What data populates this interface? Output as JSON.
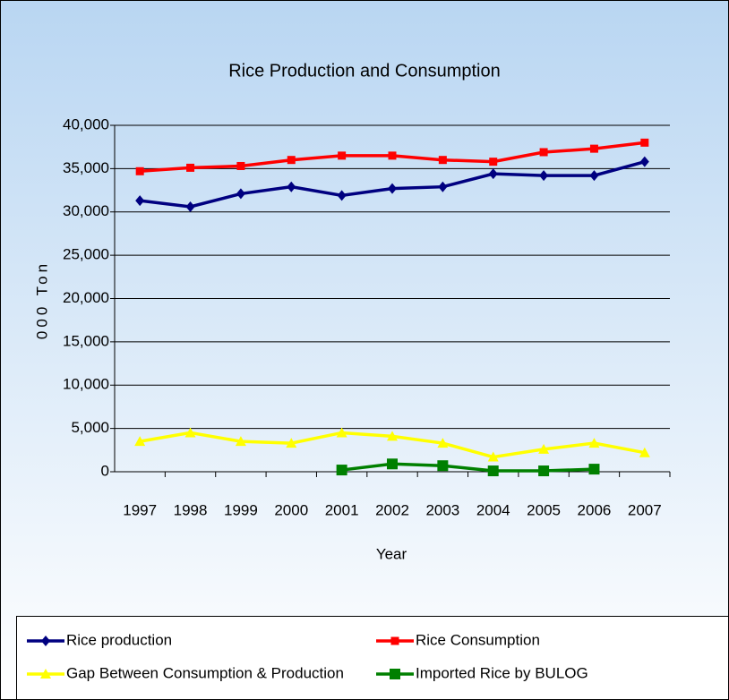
{
  "chart_data": {
    "type": "line",
    "title": "Rice Production and Consumption",
    "x_label": "Year",
    "y_label": "000 Ton",
    "categories": [
      "1997",
      "1998",
      "1999",
      "2000",
      "2001",
      "2002",
      "2003",
      "2004",
      "2005",
      "2006",
      "2007"
    ],
    "series": [
      {
        "name": "Rice production",
        "color": "#000080",
        "marker": "diamond",
        "values": [
          31300,
          30600,
          32100,
          32900,
          31900,
          32700,
          32900,
          34400,
          34200,
          34200,
          35800
        ]
      },
      {
        "name": "Rice Consumption",
        "color": "#ff0000",
        "marker": "square",
        "values": [
          34700,
          35100,
          35300,
          36000,
          36500,
          36500,
          36000,
          35800,
          36900,
          37300,
          38000
        ]
      },
      {
        "name": "Gap Between Consumption & Production",
        "color": "#ffff00",
        "marker": "triangle",
        "values": [
          3500,
          4500,
          3500,
          3300,
          4500,
          4100,
          3300,
          1700,
          2600,
          3300,
          2200
        ]
      },
      {
        "name": "Imported Rice by BULOG",
        "color": "#008000",
        "marker": "bigsquare",
        "values": [
          null,
          null,
          null,
          null,
          200,
          900,
          700,
          100,
          100,
          300,
          null
        ]
      }
    ],
    "ylim": [
      0,
      40000
    ],
    "yticks": [
      0,
      {
        "value": 5000,
        "label": "5,000"
      },
      {
        "value": 10000,
        "label": "10,000"
      },
      {
        "value": 15000,
        "label": "15,000"
      },
      {
        "value": 20000,
        "label": "20,000"
      },
      {
        "value": 25000,
        "label": "25,000"
      },
      {
        "value": 30000,
        "label": "30,000"
      },
      {
        "value": 35000,
        "label": "35,000"
      },
      {
        "value": 40000,
        "label": "40,000"
      }
    ],
    "grid": true,
    "legend": "bottom"
  }
}
